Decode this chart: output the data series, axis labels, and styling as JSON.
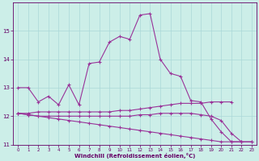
{
  "xlabel": "Windchill (Refroidissement éolien,°C)",
  "bg_color": "#cceee8",
  "grid_color": "#aad8d8",
  "line_color": "#993399",
  "x": [
    0,
    1,
    2,
    3,
    4,
    5,
    6,
    7,
    8,
    9,
    10,
    11,
    12,
    13,
    14,
    15,
    16,
    17,
    18,
    19,
    20,
    21,
    22,
    23
  ],
  "series1": [
    13.0,
    13.0,
    12.5,
    12.7,
    12.4,
    13.1,
    12.4,
    13.85,
    13.9,
    14.6,
    14.8,
    14.7,
    15.55,
    15.6,
    14.0,
    13.5,
    13.4,
    12.55,
    12.5,
    11.9,
    11.45,
    11.1,
    11.1,
    null
  ],
  "series2": [
    12.1,
    12.1,
    12.15,
    12.15,
    12.15,
    12.15,
    12.15,
    12.15,
    12.15,
    12.15,
    12.2,
    12.2,
    12.25,
    12.3,
    12.35,
    12.4,
    12.45,
    12.45,
    12.45,
    12.5,
    12.5,
    12.5,
    null,
    null
  ],
  "series3": [
    12.1,
    12.05,
    12.0,
    11.95,
    11.9,
    11.85,
    11.8,
    11.75,
    11.7,
    11.65,
    11.6,
    11.55,
    11.5,
    11.45,
    11.4,
    11.35,
    11.3,
    11.25,
    11.2,
    11.15,
    11.1,
    11.1,
    11.1,
    11.1
  ],
  "series4": [
    12.1,
    12.05,
    12.0,
    12.0,
    12.0,
    12.0,
    12.0,
    12.0,
    12.0,
    12.0,
    12.0,
    12.0,
    12.05,
    12.05,
    12.1,
    12.1,
    12.1,
    12.1,
    12.05,
    12.0,
    11.85,
    11.4,
    11.1,
    11.1
  ],
  "ylim": [
    11.0,
    16.0
  ],
  "xlim": [
    -0.5,
    23.5
  ],
  "yticks": [
    11,
    12,
    13,
    14,
    15
  ],
  "xticks": [
    0,
    1,
    2,
    3,
    4,
    5,
    6,
    7,
    8,
    9,
    10,
    11,
    12,
    13,
    14,
    15,
    16,
    17,
    18,
    19,
    20,
    21,
    22,
    23
  ]
}
